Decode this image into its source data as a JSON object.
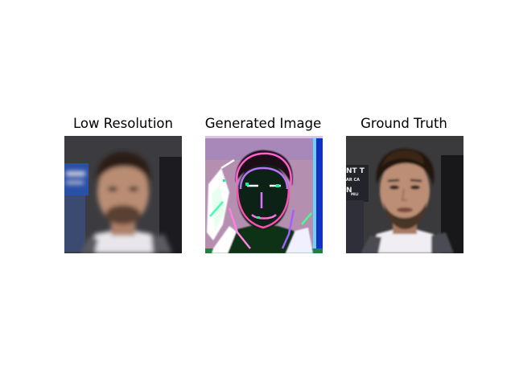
{
  "panels": [
    {
      "title": "Low Resolution"
    },
    {
      "title": "Generated Image"
    },
    {
      "title": "Ground Truth"
    }
  ],
  "colors": {
    "background": "#ffffff",
    "backdrop_dark": "#3a3a3c",
    "backdrop_blue": "#2a4fa8",
    "hair": "#2a1c14",
    "skin": "#b98d73",
    "shirt": "#e8e6ea",
    "generated_tint": "#b58fb0"
  }
}
